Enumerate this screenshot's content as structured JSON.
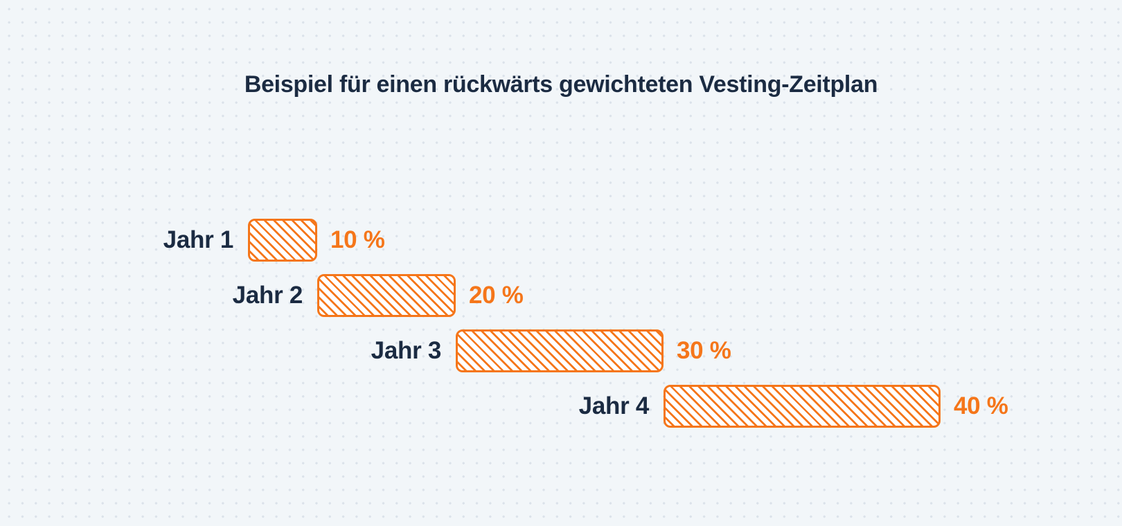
{
  "colors": {
    "navy": "#1B2B42",
    "orange": "#F5761A",
    "background": "#F2F6F9",
    "dot": "#DBE2EA",
    "bar_fill": "#FFFFFF"
  },
  "chart_data": {
    "type": "bar",
    "variant": "horizontal-cascading-gantt",
    "title": "Beispiel für einen rückwärts gewichteten Vesting-Zeitplan",
    "categories": [
      "Jahr 1",
      "Jahr 2",
      "Jahr 3",
      "Jahr 4"
    ],
    "values": [
      10,
      20,
      30,
      40
    ],
    "unit": "%",
    "value_total": 100,
    "axes": "none",
    "grid": "dotted page background only",
    "legend": "none",
    "bar_style": "white fill with orange diagonal hatch (backslash direction), 3px orange border, rounded corners, each bar starts where the previous one ends",
    "rows": [
      {
        "label": "Jahr 1",
        "value": 10,
        "value_label": "10 %"
      },
      {
        "label": "Jahr 2",
        "value": 20,
        "value_label": "20 %"
      },
      {
        "label": "Jahr 3",
        "value": 30,
        "value_label": "30 %"
      },
      {
        "label": "Jahr 4",
        "value": 40,
        "value_label": "40 %"
      }
    ]
  }
}
